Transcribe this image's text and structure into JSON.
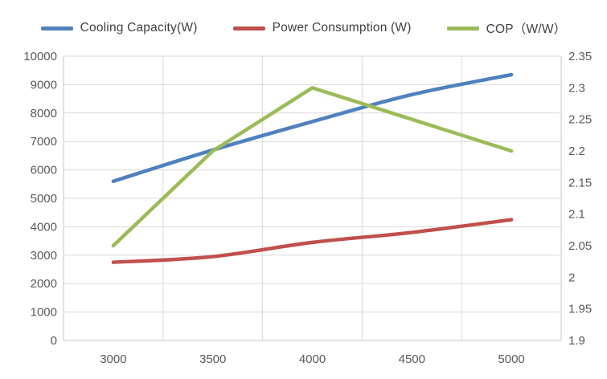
{
  "legend": {
    "items": [
      {
        "label": "Cooling Capacity(W)",
        "color": "#4F81BD",
        "name": "cooling-capacity"
      },
      {
        "label": "Power Consumption (W)",
        "color": "#C0504D",
        "name": "power-consumption"
      },
      {
        "label": "COP（W/W）",
        "color": "#9BBB59",
        "name": "cop"
      }
    ]
  },
  "chart_data": {
    "type": "line",
    "title": "",
    "categories": [
      3000,
      3500,
      4000,
      4500,
      5000
    ],
    "x_tick_labels": [
      "3000",
      "3500",
      "4000",
      "4500",
      "5000"
    ],
    "series": [
      {
        "name": "Cooling Capacity(W)",
        "axis": "left",
        "color": "#4F81BD",
        "smooth": true,
        "values": [
          5600,
          6700,
          7700,
          8650,
          9350
        ]
      },
      {
        "name": "Power Consumption (W)",
        "axis": "left",
        "color": "#C0504D",
        "smooth": true,
        "values": [
          2750,
          2950,
          3450,
          3800,
          4250
        ]
      },
      {
        "name": "COP（W/W）",
        "axis": "right",
        "color": "#9BBB59",
        "smooth": false,
        "values": [
          2.05,
          2.2,
          2.3,
          2.25,
          2.2
        ]
      }
    ],
    "left_axis": {
      "min": 0,
      "max": 10000,
      "step": 1000,
      "tick_labels": [
        "10000",
        "9000",
        "8000",
        "7000",
        "6000",
        "5000",
        "4000",
        "3000",
        "2000",
        "1000",
        "0"
      ]
    },
    "right_axis": {
      "min": 1.9,
      "max": 2.35,
      "step": 0.05,
      "tick_labels": [
        "2.35",
        "2.3",
        "2.25",
        "2.2",
        "2.15",
        "2.1",
        "2.05",
        "2",
        "1.95",
        "1.9"
      ]
    },
    "grid": {
      "horizontal": true,
      "vertical": true,
      "color": "#D9D9D9",
      "border_color": "#C6C6C6"
    },
    "legend_position": "top"
  },
  "styles": {
    "background": "#FFFFFF",
    "tick_text_color": "#595959",
    "legend_text_color": "#404040",
    "line_width": 4.5
  }
}
